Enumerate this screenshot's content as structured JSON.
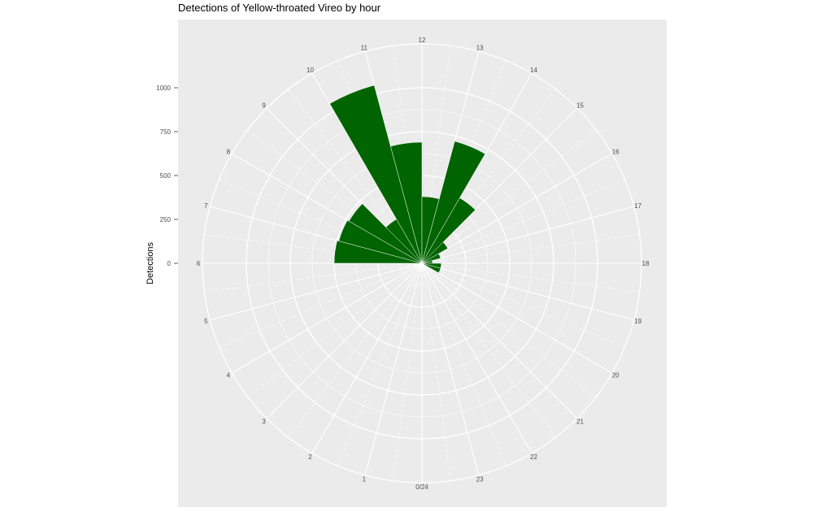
{
  "chart_data": {
    "type": "bar",
    "projection": "polar",
    "title": "Detections of Yellow-throated Vireo by hour",
    "xlabel": "",
    "ylabel": "Detections",
    "categories": [
      "0/24",
      "1",
      "2",
      "3",
      "4",
      "5",
      "6",
      "7",
      "8",
      "9",
      "10",
      "11",
      "12",
      "13",
      "14",
      "15",
      "16",
      "17",
      "18",
      "19",
      "20",
      "21",
      "22",
      "23"
    ],
    "values": [
      0,
      0,
      0,
      0,
      0,
      0,
      500,
      490,
      480,
      290,
      1050,
      690,
      380,
      720,
      430,
      170,
      110,
      60,
      110,
      110,
      0,
      0,
      0,
      0
    ],
    "yticks": [
      0,
      250,
      500,
      750,
      1000
    ],
    "ylim": [
      0,
      1250
    ],
    "grid": true,
    "bar_color": "#006400",
    "panel_background": "#ebebeb"
  }
}
